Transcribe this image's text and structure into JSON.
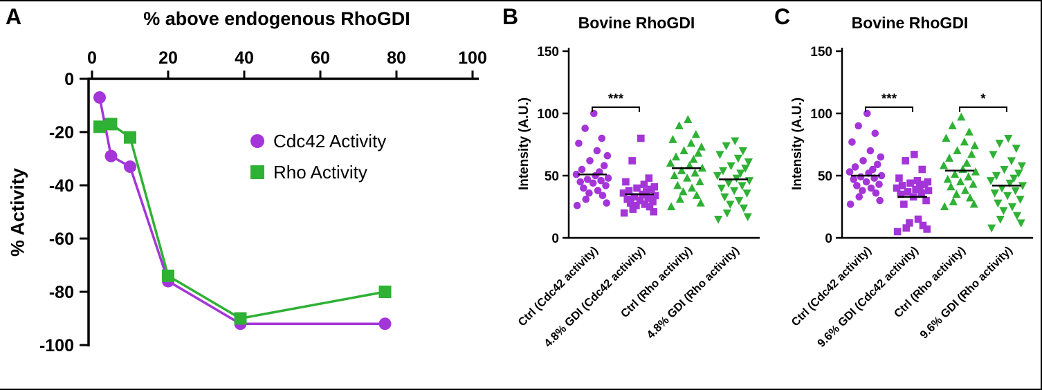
{
  "panels": [
    {
      "letter": "A"
    },
    {
      "letter": "B"
    },
    {
      "letter": "C"
    }
  ],
  "chart_data": [
    {
      "type": "line",
      "xlabel": "% above endogenous RhoGDI",
      "ylabel": "% Activity",
      "xlim": [
        0,
        100
      ],
      "ylim": [
        -100,
        0
      ],
      "xticks": [
        0,
        20,
        40,
        60,
        80,
        100
      ],
      "yticks": [
        0,
        -20,
        -40,
        -60,
        -80,
        -100
      ],
      "legend_position": "inside-right",
      "grid": false,
      "series": [
        {
          "name": "Cdc42 Activity",
          "color": "#A435D8",
          "marker": "circle",
          "x": [
            2,
            5,
            10,
            20,
            39,
            77
          ],
          "y": [
            -7,
            -29,
            -33,
            -76,
            -92,
            -92
          ]
        },
        {
          "name": "Rho Activity",
          "color": "#2EB135",
          "marker": "square",
          "x": [
            2,
            5,
            10,
            20,
            39,
            77
          ],
          "y": [
            -18,
            -17,
            -22,
            -74,
            -90,
            -80
          ]
        }
      ]
    },
    {
      "type": "scatter",
      "title": "Bovine RhoGDI",
      "ylabel": "Intensity (A.U.)",
      "ylim": [
        0,
        150
      ],
      "yticks": [
        0,
        50,
        100,
        150
      ],
      "grid": false,
      "groups": [
        {
          "label": "Ctrl (Cdc42 activity)",
          "color": "#A435D8",
          "marker": "circle",
          "mean": 51,
          "values": [
            100,
            88,
            80,
            76,
            70,
            66,
            62,
            58,
            55,
            53,
            51,
            50,
            48,
            47,
            46,
            45,
            44,
            42,
            40,
            38,
            36,
            34,
            31,
            28,
            26
          ]
        },
        {
          "label": "4.8% GDI (Cdc42 activity)",
          "color": "#A435D8",
          "marker": "square",
          "mean": 35,
          "values": [
            80,
            62,
            48,
            45,
            43,
            41,
            40,
            39,
            38,
            37,
            36,
            35,
            34,
            33,
            32,
            31,
            30,
            29,
            28,
            27,
            26,
            25,
            23,
            21,
            20
          ]
        },
        {
          "label": "Ctrl (Rho activity)",
          "color": "#2EB135",
          "marker": "triangle-up",
          "mean": 56,
          "values": [
            95,
            90,
            83,
            79,
            76,
            73,
            70,
            68,
            65,
            63,
            60,
            58,
            56,
            54,
            52,
            50,
            48,
            45,
            42,
            40,
            37,
            34,
            31,
            28,
            25
          ]
        },
        {
          "label": "4.8% GDI (Rho activity)",
          "color": "#2EB135",
          "marker": "triangle-down",
          "mean": 47,
          "values": [
            78,
            74,
            70,
            67,
            64,
            61,
            58,
            56,
            54,
            52,
            50,
            48,
            46,
            44,
            42,
            40,
            38,
            36,
            33,
            30,
            27,
            24,
            20,
            17,
            15
          ]
        }
      ],
      "significance": [
        {
          "from": 0,
          "to": 1,
          "label": "***"
        }
      ]
    },
    {
      "type": "scatter",
      "title": "Bovine RhoGDI",
      "ylabel": "Intensity (A.U.)",
      "ylim": [
        0,
        150
      ],
      "yticks": [
        0,
        50,
        100,
        150
      ],
      "grid": false,
      "groups": [
        {
          "label": "Ctrl (Cdc42 activity)",
          "color": "#A435D8",
          "marker": "circle",
          "mean": 50,
          "values": [
            100,
            90,
            84,
            77,
            70,
            65,
            62,
            59,
            57,
            55,
            53,
            52,
            50,
            49,
            48,
            47,
            45,
            43,
            42,
            40,
            38,
            36,
            33,
            30,
            27
          ]
        },
        {
          "label": "9.6% GDI (Cdc42 activity)",
          "color": "#A435D8",
          "marker": "square",
          "mean": 33,
          "values": [
            67,
            62,
            55,
            48,
            46,
            45,
            44,
            43,
            42,
            41,
            40,
            39,
            38,
            37,
            36,
            35,
            33,
            30,
            27,
            15,
            12,
            10,
            8,
            7,
            5
          ]
        },
        {
          "label": "Ctrl (Rho activity)",
          "color": "#2EB135",
          "marker": "triangle-up",
          "mean": 54,
          "values": [
            97,
            90,
            85,
            80,
            77,
            74,
            70,
            67,
            64,
            60,
            58,
            55,
            53,
            51,
            49,
            47,
            45,
            43,
            41,
            38,
            35,
            32,
            29,
            27,
            25
          ]
        },
        {
          "label": "9.6% GDI (Rho activity)",
          "color": "#2EB135",
          "marker": "triangle-down",
          "mean": 42,
          "values": [
            80,
            76,
            72,
            67,
            62,
            58,
            55,
            52,
            50,
            48,
            46,
            44,
            42,
            40,
            38,
            36,
            34,
            31,
            28,
            25,
            22,
            18,
            15,
            12,
            8
          ]
        }
      ],
      "significance": [
        {
          "from": 0,
          "to": 1,
          "label": "***"
        },
        {
          "from": 2,
          "to": 3,
          "label": "*"
        }
      ]
    }
  ]
}
